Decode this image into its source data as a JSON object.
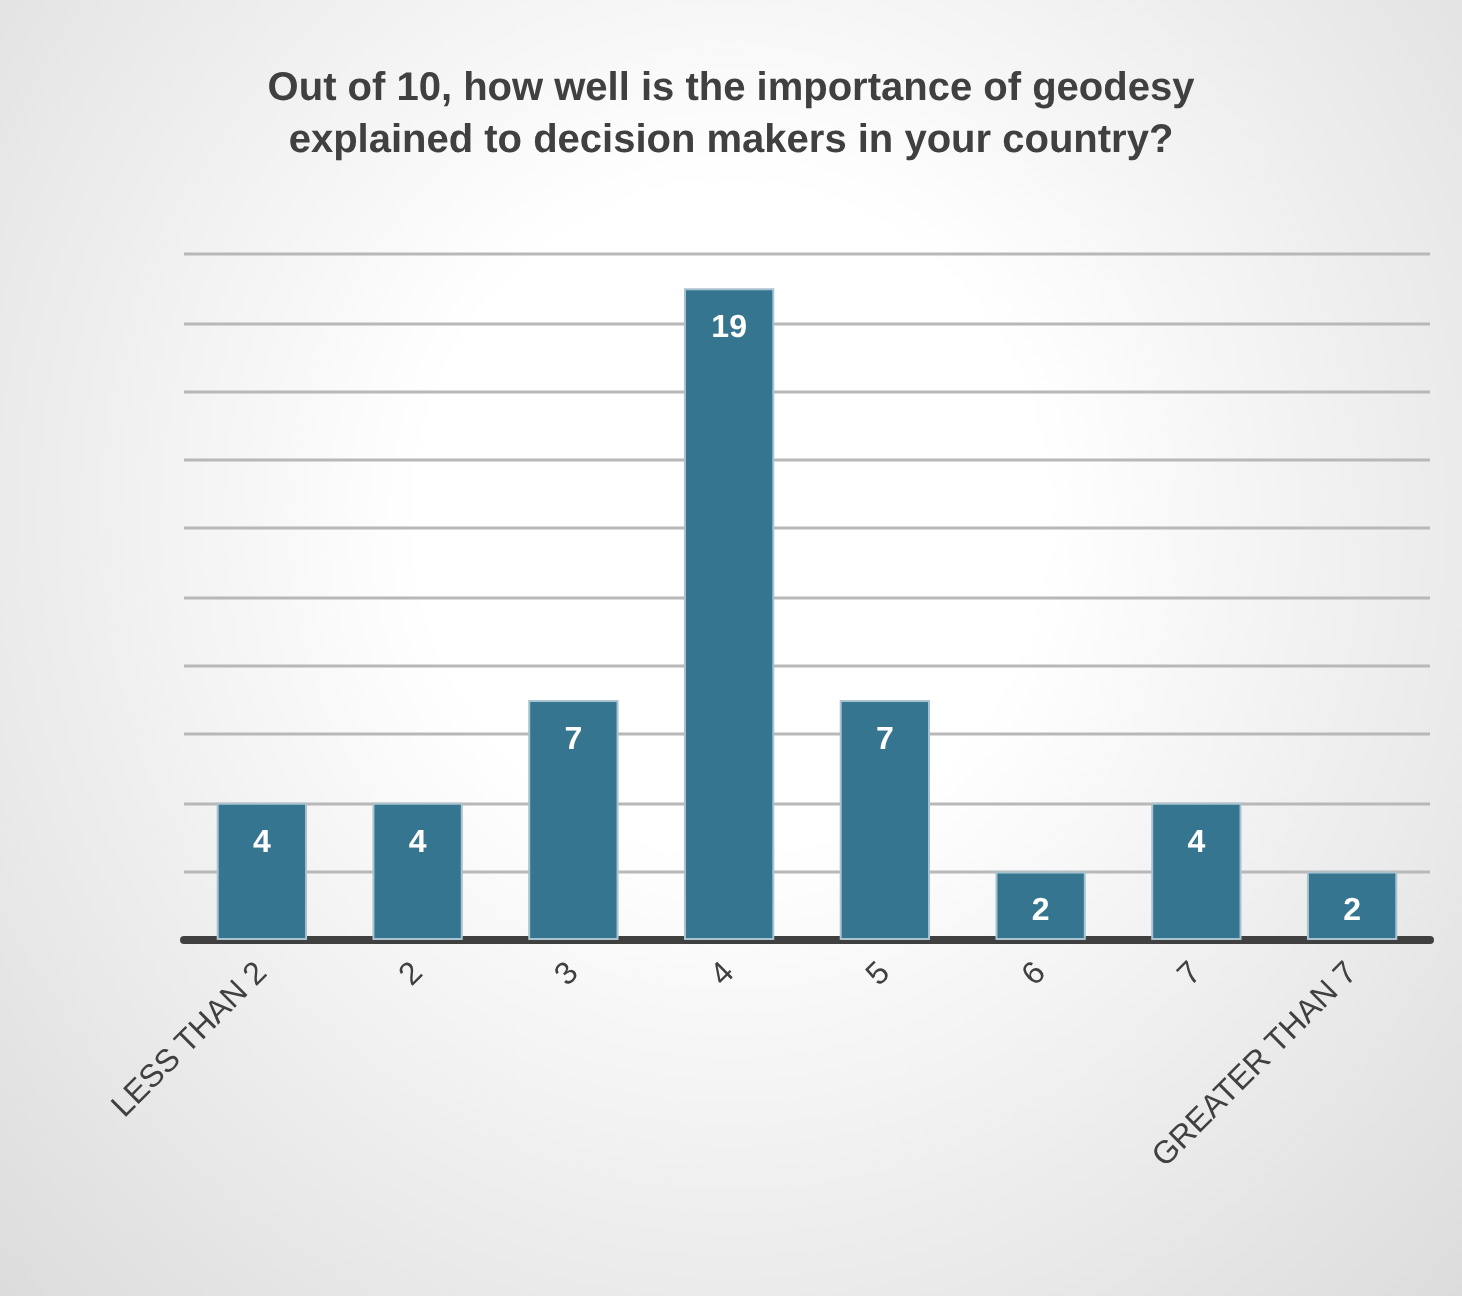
{
  "chart_data": {
    "type": "bar",
    "title": "Out of 10, how well is the importance of geodesy\nexplained to decision makers in your country?",
    "categories": [
      "LESS THAN 2",
      "2",
      "3",
      "4",
      "5",
      "6",
      "7",
      "GREATER THAN 7"
    ],
    "values": [
      4,
      4,
      7,
      19,
      7,
      2,
      4,
      2
    ],
    "color": "#367590",
    "ylim": [
      0,
      20
    ],
    "yticks": [
      {
        "value": 0,
        "label": null
      },
      {
        "value": 2,
        "label": null
      },
      {
        "value": 4,
        "label": null
      },
      {
        "value": 6,
        "label": null
      },
      {
        "value": 8,
        "label": null
      },
      {
        "value": 10,
        "label": null
      },
      {
        "value": 12,
        "label": null
      },
      {
        "value": 14,
        "label": null
      },
      {
        "value": 16,
        "label": null
      },
      {
        "value": 18,
        "label": null
      },
      {
        "value": 20,
        "label": null
      }
    ],
    "tick_labels": "x",
    "grid": "y",
    "data_labels": true
  }
}
